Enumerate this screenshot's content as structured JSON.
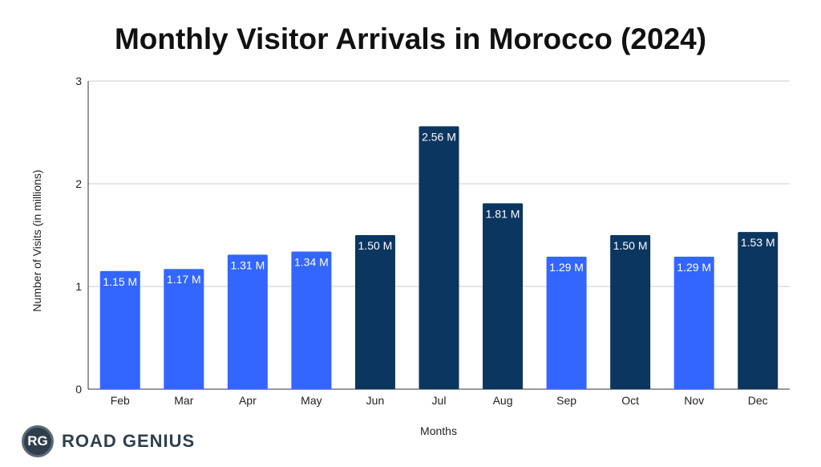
{
  "chart_data": {
    "type": "bar",
    "title": "Monthly Visitor Arrivals in Morocco (2024)",
    "xlabel": "Months",
    "ylabel": "Number of Visits (in millions)",
    "ylim": [
      0,
      3
    ],
    "yticks": [
      "0",
      "1",
      "2",
      "3"
    ],
    "grid": true,
    "categories": [
      "Feb",
      "Mar",
      "Apr",
      "May",
      "Jun",
      "Jul",
      "Aug",
      "Sep",
      "Oct",
      "Nov",
      "Dec"
    ],
    "values": [
      1.15,
      1.17,
      1.31,
      1.34,
      1.5,
      2.56,
      1.81,
      1.29,
      1.5,
      1.29,
      1.53
    ],
    "labels": [
      "1.15 M",
      "1.17 M",
      "1.31 M",
      "1.34 M",
      "1.50 M",
      "2.56 M",
      "1.81 M",
      "1.29 M",
      "1.50 M",
      "1.29 M",
      "1.53 M"
    ],
    "bar_colors": [
      "#3366ff",
      "#3366ff",
      "#3366ff",
      "#3366ff",
      "#0b3660",
      "#0b3660",
      "#0b3660",
      "#3366ff",
      "#0b3660",
      "#3366ff",
      "#0b3660"
    ]
  },
  "logo": {
    "initials": "RG",
    "name": "ROAD GENIUS",
    "circle_color": "#2f3f4c"
  }
}
